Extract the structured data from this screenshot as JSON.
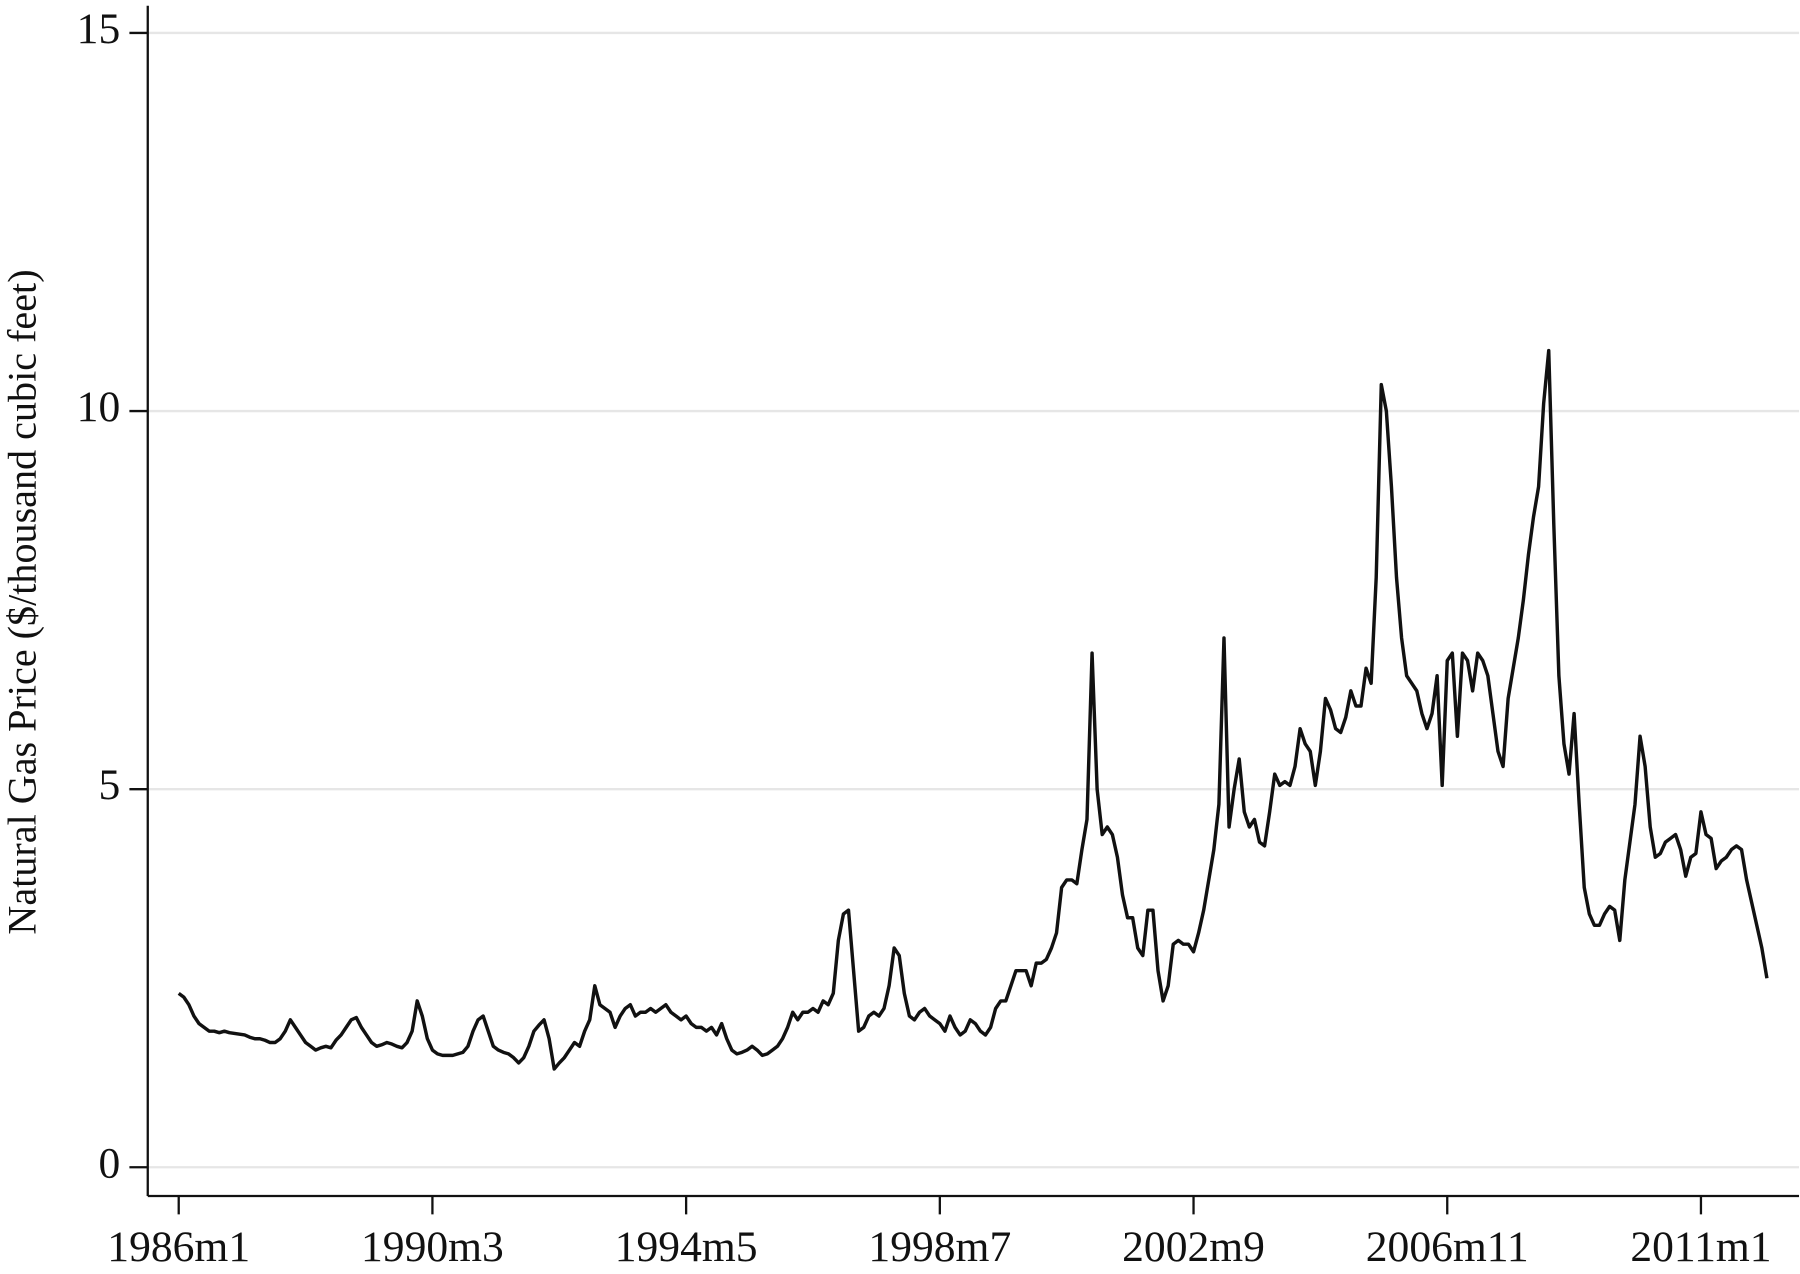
{
  "chart_data": {
    "type": "line",
    "ylabel": "Natural Gas Price ($/thousand cubic feet)",
    "x": [
      "1986m1",
      "1986m2",
      "1986m3",
      "1986m4",
      "1986m5",
      "1986m6",
      "1986m7",
      "1986m8",
      "1986m9",
      "1986m10",
      "1986m11",
      "1986m12",
      "1987m1",
      "1987m2",
      "1987m3",
      "1987m4",
      "1987m5",
      "1987m6",
      "1987m7",
      "1987m8",
      "1987m9",
      "1987m10",
      "1987m11",
      "1987m12",
      "1988m1",
      "1988m2",
      "1988m3",
      "1988m4",
      "1988m5",
      "1988m6",
      "1988m7",
      "1988m8",
      "1988m9",
      "1988m10",
      "1988m11",
      "1988m12",
      "1989m1",
      "1989m2",
      "1989m3",
      "1989m4",
      "1989m5",
      "1989m6",
      "1989m7",
      "1989m8",
      "1989m9",
      "1989m10",
      "1989m11",
      "1989m12",
      "1990m1",
      "1990m2",
      "1990m3",
      "1990m4",
      "1990m5",
      "1990m6",
      "1990m7",
      "1990m8",
      "1990m9",
      "1990m10",
      "1990m11",
      "1990m12",
      "1991m1",
      "1991m2",
      "1991m3",
      "1991m4",
      "1991m5",
      "1991m6",
      "1991m7",
      "1991m8",
      "1991m9",
      "1991m10",
      "1991m11",
      "1991m12",
      "1992m1",
      "1992m2",
      "1992m3",
      "1992m4",
      "1992m5",
      "1992m6",
      "1992m7",
      "1992m8",
      "1992m9",
      "1992m10",
      "1992m11",
      "1992m12",
      "1993m1",
      "1993m2",
      "1993m3",
      "1993m4",
      "1993m5",
      "1993m6",
      "1993m7",
      "1993m8",
      "1993m9",
      "1993m10",
      "1993m11",
      "1993m12",
      "1994m1",
      "1994m2",
      "1994m3",
      "1994m4",
      "1994m5",
      "1994m6",
      "1994m7",
      "1994m8",
      "1994m9",
      "1994m10",
      "1994m11",
      "1994m12",
      "1995m1",
      "1995m2",
      "1995m3",
      "1995m4",
      "1995m5",
      "1995m6",
      "1995m7",
      "1995m8",
      "1995m9",
      "1995m10",
      "1995m11",
      "1995m12",
      "1996m1",
      "1996m2",
      "1996m3",
      "1996m4",
      "1996m5",
      "1996m6",
      "1996m7",
      "1996m8",
      "1996m9",
      "1996m10",
      "1996m11",
      "1996m12",
      "1997m1",
      "1997m2",
      "1997m3",
      "1997m4",
      "1997m5",
      "1997m6",
      "1997m7",
      "1997m8",
      "1997m9",
      "1997m10",
      "1997m11",
      "1997m12",
      "1998m1",
      "1998m2",
      "1998m3",
      "1998m4",
      "1998m5",
      "1998m6",
      "1998m7",
      "1998m8",
      "1998m9",
      "1998m10",
      "1998m11",
      "1998m12",
      "1999m1",
      "1999m2",
      "1999m3",
      "1999m4",
      "1999m5",
      "1999m6",
      "1999m7",
      "1999m8",
      "1999m9",
      "1999m10",
      "1999m11",
      "1999m12",
      "2000m1",
      "2000m2",
      "2000m3",
      "2000m4",
      "2000m5",
      "2000m6",
      "2000m7",
      "2000m8",
      "2000m9",
      "2000m10",
      "2000m11",
      "2000m12",
      "2001m1",
      "2001m2",
      "2001m3",
      "2001m4",
      "2001m5",
      "2001m6",
      "2001m7",
      "2001m8",
      "2001m9",
      "2001m10",
      "2001m11",
      "2001m12",
      "2002m1",
      "2002m2",
      "2002m3",
      "2002m4",
      "2002m5",
      "2002m6",
      "2002m7",
      "2002m8",
      "2002m9",
      "2002m10",
      "2002m11",
      "2002m12",
      "2003m1",
      "2003m2",
      "2003m3",
      "2003m4",
      "2003m5",
      "2003m6",
      "2003m7",
      "2003m8",
      "2003m9",
      "2003m10",
      "2003m11",
      "2003m12",
      "2004m1",
      "2004m2",
      "2004m3",
      "2004m4",
      "2004m5",
      "2004m6",
      "2004m7",
      "2004m8",
      "2004m9",
      "2004m10",
      "2004m11",
      "2004m12",
      "2005m1",
      "2005m2",
      "2005m3",
      "2005m4",
      "2005m5",
      "2005m6",
      "2005m7",
      "2005m8",
      "2005m9",
      "2005m10",
      "2005m11",
      "2005m12",
      "2006m1",
      "2006m2",
      "2006m3",
      "2006m4",
      "2006m5",
      "2006m6",
      "2006m7",
      "2006m8",
      "2006m9",
      "2006m10",
      "2006m11",
      "2006m12",
      "2007m1",
      "2007m2",
      "2007m3",
      "2007m4",
      "2007m5",
      "2007m6",
      "2007m7",
      "2007m8",
      "2007m9",
      "2007m10",
      "2007m11",
      "2007m12",
      "2008m1",
      "2008m2",
      "2008m3",
      "2008m4",
      "2008m5",
      "2008m6",
      "2008m7",
      "2008m8",
      "2008m9",
      "2008m10",
      "2008m11",
      "2008m12",
      "2009m1",
      "2009m2",
      "2009m3",
      "2009m4",
      "2009m5",
      "2009m6",
      "2009m7",
      "2009m8",
      "2009m9",
      "2009m10",
      "2009m11",
      "2009m12",
      "2010m1",
      "2010m2",
      "2010m3",
      "2010m4",
      "2010m5",
      "2010m6",
      "2010m7",
      "2010m8",
      "2010m9",
      "2010m10",
      "2010m11",
      "2010m12",
      "2011m1",
      "2011m2",
      "2011m3",
      "2011m4",
      "2011m5",
      "2011m6",
      "2011m7",
      "2011m8",
      "2011m9",
      "2011m10",
      "2011m11",
      "2011m12",
      "2012m1",
      "2012m2"
    ],
    "values": [
      2.3,
      2.25,
      2.15,
      2.0,
      1.9,
      1.85,
      1.8,
      1.8,
      1.78,
      1.8,
      1.78,
      1.77,
      1.76,
      1.75,
      1.72,
      1.7,
      1.7,
      1.68,
      1.65,
      1.65,
      1.7,
      1.8,
      1.95,
      1.85,
      1.75,
      1.65,
      1.6,
      1.55,
      1.58,
      1.6,
      1.58,
      1.68,
      1.75,
      1.85,
      1.95,
      1.98,
      1.85,
      1.75,
      1.65,
      1.6,
      1.62,
      1.65,
      1.63,
      1.6,
      1.58,
      1.65,
      1.8,
      2.2,
      2.0,
      1.7,
      1.55,
      1.5,
      1.48,
      1.48,
      1.48,
      1.5,
      1.52,
      1.6,
      1.8,
      1.95,
      2.0,
      1.8,
      1.6,
      1.55,
      1.52,
      1.5,
      1.45,
      1.38,
      1.45,
      1.6,
      1.8,
      1.88,
      1.95,
      1.7,
      1.3,
      1.38,
      1.45,
      1.55,
      1.65,
      1.6,
      1.8,
      1.95,
      2.4,
      2.15,
      2.1,
      2.05,
      1.85,
      2.0,
      2.1,
      2.15,
      2.0,
      2.05,
      2.05,
      2.1,
      2.05,
      2.1,
      2.15,
      2.05,
      2.0,
      1.95,
      2.0,
      1.9,
      1.85,
      1.85,
      1.8,
      1.85,
      1.75,
      1.9,
      1.7,
      1.55,
      1.5,
      1.52,
      1.55,
      1.6,
      1.55,
      1.48,
      1.5,
      1.55,
      1.6,
      1.7,
      1.85,
      2.05,
      1.95,
      2.05,
      2.05,
      2.1,
      2.05,
      2.2,
      2.15,
      2.3,
      3.0,
      3.35,
      3.4,
      2.6,
      1.8,
      1.85,
      2.0,
      2.05,
      2.0,
      2.1,
      2.4,
      2.9,
      2.8,
      2.3,
      2.0,
      1.95,
      2.05,
      2.1,
      2.0,
      1.95,
      1.9,
      1.8,
      2.0,
      1.85,
      1.75,
      1.8,
      1.95,
      1.9,
      1.8,
      1.75,
      1.85,
      2.1,
      2.2,
      2.2,
      2.4,
      2.6,
      2.6,
      2.6,
      2.4,
      2.7,
      2.7,
      2.75,
      2.9,
      3.1,
      3.7,
      3.8,
      3.8,
      3.75,
      4.2,
      4.6,
      6.8,
      5.0,
      4.4,
      4.5,
      4.4,
      4.1,
      3.6,
      3.3,
      3.3,
      2.9,
      2.8,
      3.4,
      3.4,
      2.6,
      2.2,
      2.4,
      2.95,
      3.0,
      2.95,
      2.95,
      2.85,
      3.1,
      3.4,
      3.8,
      4.2,
      4.8,
      7.0,
      4.5,
      5.0,
      5.4,
      4.7,
      4.5,
      4.6,
      4.3,
      4.25,
      4.7,
      5.2,
      5.05,
      5.1,
      5.05,
      5.3,
      5.8,
      5.6,
      5.5,
      5.05,
      5.5,
      6.2,
      6.05,
      5.8,
      5.75,
      5.95,
      6.3,
      6.1,
      6.1,
      6.6,
      6.4,
      7.8,
      10.35,
      10.0,
      9.0,
      7.8,
      7.0,
      6.5,
      6.4,
      6.3,
      6.0,
      5.8,
      6.0,
      6.5,
      5.05,
      6.7,
      6.8,
      5.7,
      6.8,
      6.7,
      6.3,
      6.8,
      6.7,
      6.5,
      6.0,
      5.5,
      5.3,
      6.2,
      6.6,
      7.0,
      7.5,
      8.1,
      8.6,
      9.0,
      10.1,
      10.8,
      8.5,
      6.5,
      5.6,
      5.2,
      6.0,
      4.8,
      3.7,
      3.35,
      3.2,
      3.2,
      3.35,
      3.45,
      3.4,
      3.0,
      3.8,
      4.3,
      4.8,
      5.7,
      5.3,
      4.5,
      4.1,
      4.15,
      4.3,
      4.35,
      4.4,
      4.2,
      3.85,
      4.1,
      4.15,
      4.7,
      4.4,
      4.35,
      3.95,
      4.05,
      4.1,
      4.2,
      4.25,
      4.2,
      3.8,
      3.5,
      3.2,
      2.9,
      2.5
    ],
    "color": "#111111",
    "xticks": [
      "1986m1",
      "1990m3",
      "1994m5",
      "1998m7",
      "2002m9",
      "2006m11",
      "2011m1"
    ],
    "ylim": [
      -0.38,
      15.36
    ],
    "yticks": [
      0,
      5,
      10,
      15
    ],
    "grid": true
  }
}
